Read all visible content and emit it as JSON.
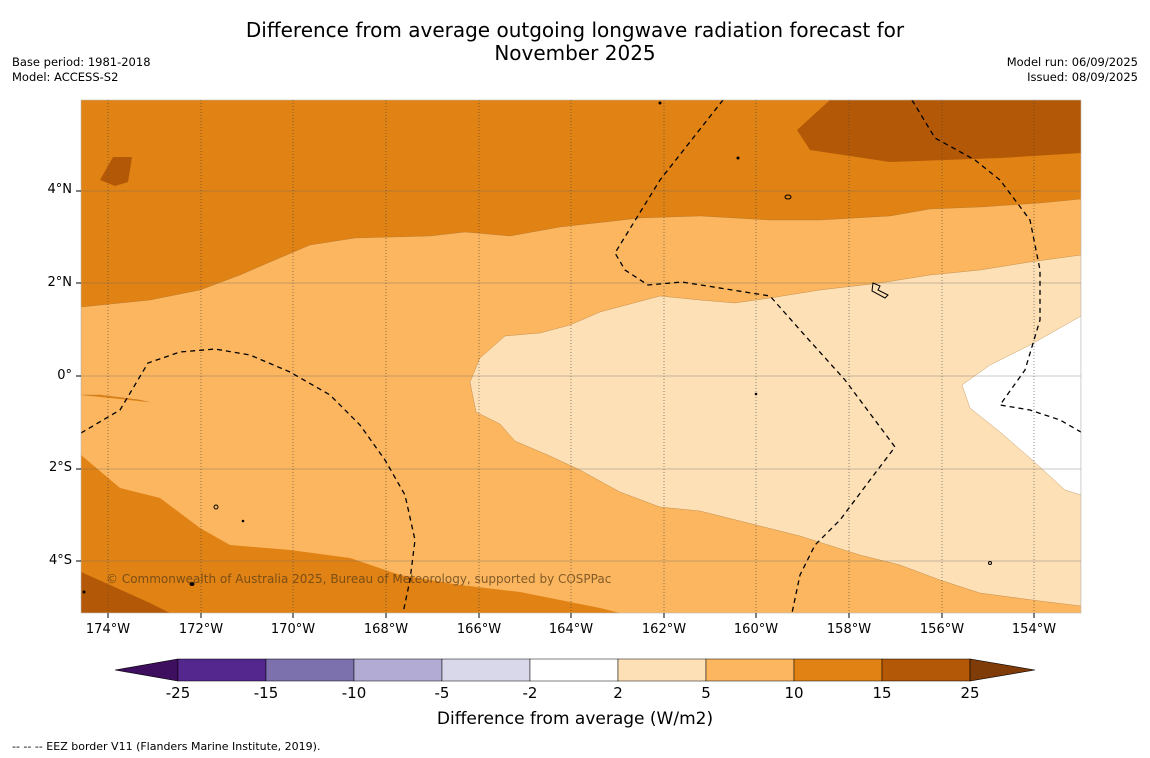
{
  "title_line1": "Difference from average outgoing longwave radiation forecast for",
  "title_line2": "November 2025",
  "base_period": "Base period: 1981-2018",
  "model": "Model: ACCESS-S2",
  "model_run": "Model run: 06/09/2025",
  "issued": "Issued: 08/09/2025",
  "copyright": "© Commonwealth of Australia 2025, Bureau of Meteorology, supported by COSPPac",
  "lat_labels": [
    "4°N",
    "2°N",
    "0°",
    "2°S",
    "4°S"
  ],
  "lon_labels": [
    "174°W",
    "172°W",
    "170°W",
    "168°W",
    "166°W",
    "164°W",
    "162°W",
    "160°W",
    "158°W",
    "156°W",
    "154°W"
  ],
  "colorbar": {
    "ticks": [
      "-25",
      "-15",
      "-10",
      "-5",
      "-2",
      "2",
      "5",
      "10",
      "15",
      "25"
    ],
    "colors": [
      "#3f0f5f",
      "#54278f",
      "#7c71ad",
      "#b2abd4",
      "#d8d8ea",
      "#ffffff",
      "#fde0b6",
      "#fbb65f",
      "#e08214",
      "#b35806",
      "#7f3b08"
    ],
    "title": "Difference from average (W/m2)"
  },
  "footer": "--  --  -- EEZ border V11 (Flanders Marine Institute, 2019)."
}
